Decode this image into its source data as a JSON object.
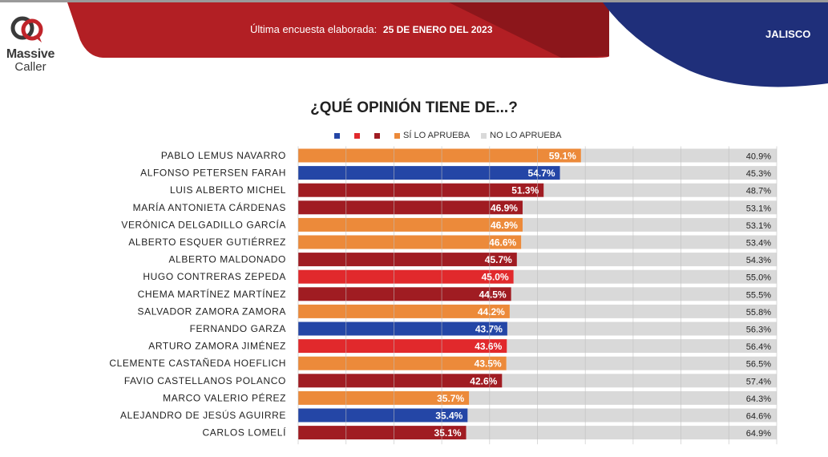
{
  "header": {
    "logo_line1": "Massive",
    "logo_line2": "Caller",
    "survey_prefix": "Última encuesta elaborada:",
    "survey_date": "25 DE ENERO DEL 2023",
    "region": "JALISCO"
  },
  "colors": {
    "banner_red": "#b21f24",
    "banner_blue": "#1f2f7a",
    "blue": "#2446a6",
    "red": "#e1292c",
    "dark_red": "#a01c22",
    "orange": "#ec8a3a",
    "gray": "#d9d9d9"
  },
  "chart_data": {
    "type": "bar",
    "orientation": "horizontal",
    "stacked": true,
    "title": "¿QUÉ OPINIÓN TIENE DE...?",
    "legend": [
      {
        "label": "",
        "color": "#2446a6"
      },
      {
        "label": "",
        "color": "#e1292c"
      },
      {
        "label": "",
        "color": "#a01c22"
      },
      {
        "label": "SÍ LO APRUEBA",
        "color": "#ec8a3a"
      },
      {
        "label": "NO LO APRUEBA",
        "color": "#d9d9d9"
      }
    ],
    "legend_position": "top",
    "xlim": [
      0,
      100
    ],
    "grid": true,
    "categories": [
      "PABLO LEMUS NAVARRO",
      "ALFONSO PETERSEN FARAH",
      "LUIS ALBERTO MICHEL",
      "MARÍA ANTONIETA CÁRDENAS",
      "VERÓNICA DELGADILLO GARCÍA",
      "ALBERTO ESQUER GUTIÉRREZ",
      "ALBERTO MALDONADO",
      "HUGO CONTRERAS ZEPEDA",
      "CHEMA MARTÍNEZ MARTÍNEZ",
      "SALVADOR ZAMORA ZAMORA",
      "FERNANDO GARZA",
      "ARTURO ZAMORA JIMÉNEZ",
      "CLEMENTE CASTAÑEDA HOEFLICH",
      "FAVIO CASTELLANOS POLANCO",
      "MARCO VALERIO PÉREZ",
      "ALEJANDRO DE JESÚS AGUIRRE",
      "CARLOS LOMELÍ"
    ],
    "approve": [
      59.1,
      54.7,
      51.3,
      46.9,
      46.9,
      46.6,
      45.7,
      45.0,
      44.5,
      44.2,
      43.7,
      43.6,
      43.5,
      42.6,
      35.7,
      35.4,
      35.1
    ],
    "approve_labels": [
      "59.1%",
      "54.7%",
      "51.3%",
      "46.9%",
      "46.9%",
      "46.6%",
      "45.7%",
      "45.0%",
      "44.5%",
      "44.2%",
      "43.7%",
      "43.6%",
      "43.5%",
      "42.6%",
      "35.7%",
      "35.4%",
      "35.1%"
    ],
    "disapprove": [
      40.9,
      45.3,
      48.7,
      53.1,
      53.1,
      53.4,
      54.3,
      55.0,
      55.5,
      55.8,
      56.3,
      56.4,
      56.5,
      57.4,
      64.3,
      64.6,
      64.9
    ],
    "disapprove_labels": [
      "40.9%",
      "45.3%",
      "48.7%",
      "53.1%",
      "53.1%",
      "53.4%",
      "54.3%",
      "55.0%",
      "55.5%",
      "55.8%",
      "56.3%",
      "56.4%",
      "56.5%",
      "57.4%",
      "64.3%",
      "64.6%",
      "64.9%"
    ],
    "bar_colors": [
      "#ec8a3a",
      "#2446a6",
      "#a01c22",
      "#a01c22",
      "#ec8a3a",
      "#ec8a3a",
      "#a01c22",
      "#e1292c",
      "#a01c22",
      "#ec8a3a",
      "#2446a6",
      "#e1292c",
      "#ec8a3a",
      "#a01c22",
      "#ec8a3a",
      "#2446a6",
      "#a01c22"
    ]
  }
}
